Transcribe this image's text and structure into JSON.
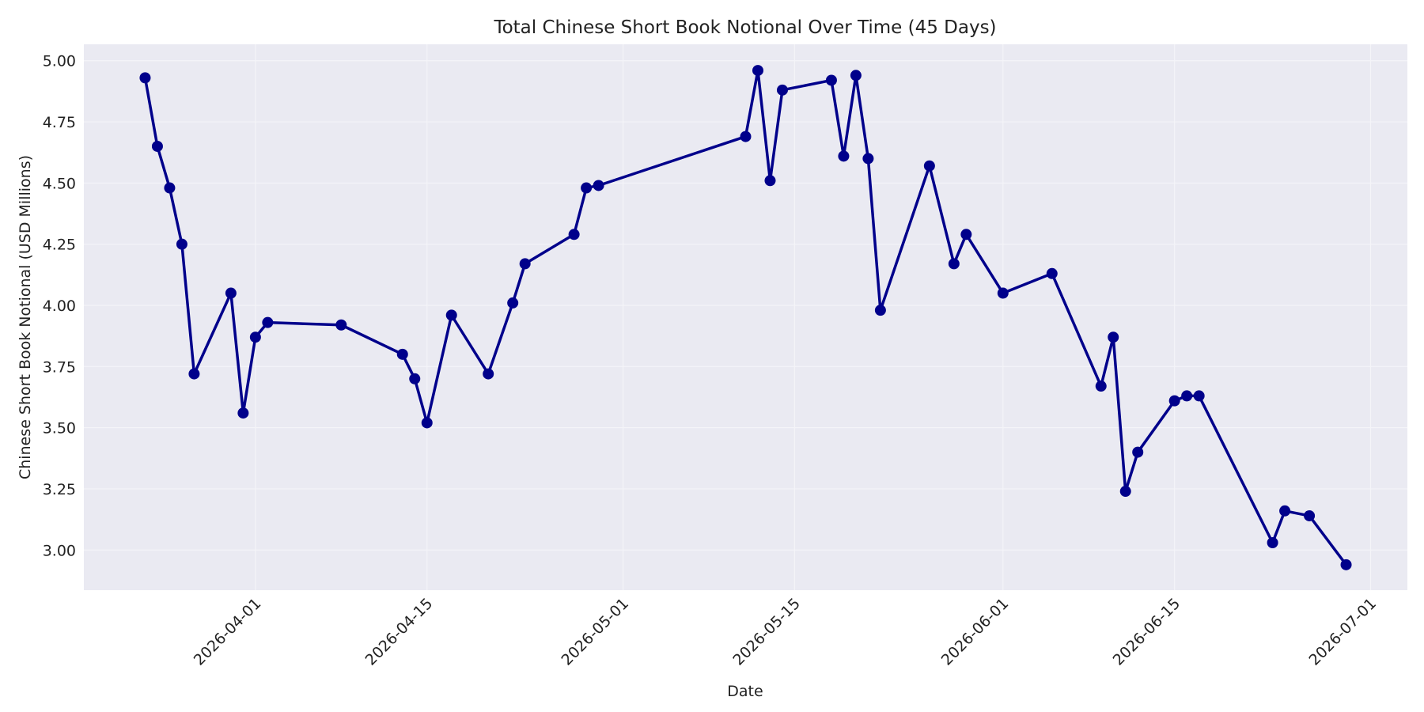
{
  "chart_data": {
    "type": "line",
    "title": "Total Chinese Short Book Notional Over Time (45 Days)",
    "x_label": "Date",
    "y_label": "Chinese Short Book Notional (USD Millions)",
    "x": [
      "2026-03-23",
      "2026-03-24",
      "2026-03-25",
      "2026-03-26",
      "2026-03-27",
      "2026-03-30",
      "2026-03-31",
      "2026-04-01",
      "2026-04-02",
      "2026-04-08",
      "2026-04-13",
      "2026-04-14",
      "2026-04-15",
      "2026-04-17",
      "2026-04-20",
      "2026-04-22",
      "2026-04-23",
      "2026-04-27",
      "2026-04-28",
      "2026-04-29",
      "2026-05-11",
      "2026-05-12",
      "2026-05-13",
      "2026-05-14",
      "2026-05-18",
      "2026-05-19",
      "2026-05-20",
      "2026-05-21",
      "2026-05-22",
      "2026-05-26",
      "2026-05-28",
      "2026-05-29",
      "2026-06-01",
      "2026-06-05",
      "2026-06-09",
      "2026-06-10",
      "2026-06-11",
      "2026-06-12",
      "2026-06-15",
      "2026-06-16",
      "2026-06-17",
      "2026-06-23",
      "2026-06-24",
      "2026-06-26",
      "2026-06-29"
    ],
    "series": [
      {
        "color": "#00008b",
        "values": [
          4.93,
          4.65,
          4.48,
          4.25,
          3.72,
          4.05,
          3.56,
          3.87,
          3.93,
          3.92,
          3.8,
          3.7,
          3.52,
          3.96,
          3.72,
          4.01,
          4.17,
          4.29,
          4.48,
          4.49,
          4.69,
          4.96,
          4.51,
          4.88,
          4.92,
          4.61,
          4.94,
          4.6,
          3.98,
          4.57,
          4.17,
          4.29,
          4.05,
          4.13,
          3.67,
          3.87,
          3.24,
          3.4,
          3.61,
          3.63,
          3.63,
          3.03,
          3.16,
          3.14,
          2.94
        ]
      }
    ],
    "xlim": [
      "2026-03-18",
      "2026-07-04"
    ],
    "xticks": [
      "2026-04-01",
      "2026-04-15",
      "2026-05-01",
      "2026-05-15",
      "2026-06-01",
      "2026-06-15",
      "2026-07-01"
    ],
    "ylim": [
      2.836,
      5.067
    ],
    "yticks": [
      {
        "value": 3,
        "label": "3.00"
      },
      {
        "value": 3.25,
        "label": "3.25"
      },
      {
        "value": 3.5,
        "label": "3.50"
      },
      {
        "value": 3.75,
        "label": "3.75"
      },
      {
        "value": 4,
        "label": "4.00"
      },
      {
        "value": 4.25,
        "label": "4.25"
      },
      {
        "value": 4.5,
        "label": "4.50"
      },
      {
        "value": 4.75,
        "label": "4.75"
      },
      {
        "value": 5,
        "label": "5.00"
      }
    ],
    "grid": true
  }
}
